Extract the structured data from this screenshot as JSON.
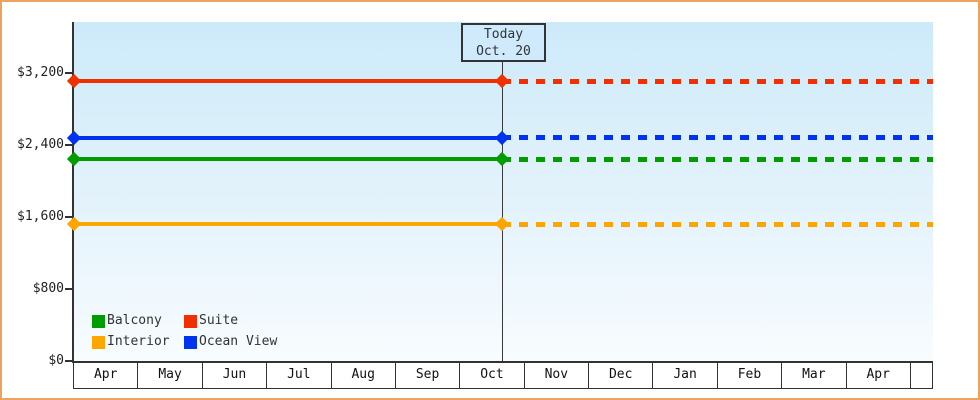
{
  "today_box": {
    "line1": "Today",
    "line2": "Oct. 20"
  },
  "y_axis": {
    "tick_labels": [
      "$3,200",
      "$2,400",
      "$1,600",
      "$800",
      "$0"
    ],
    "tick_values": [
      3200,
      2400,
      1600,
      800,
      0
    ]
  },
  "x_axis": {
    "month_labels": [
      "Apr",
      "May",
      "Jun",
      "Jul",
      "Aug",
      "Sep",
      "Oct",
      "Nov",
      "Dec",
      "Jan",
      "Feb",
      "Mar",
      "Apr"
    ]
  },
  "legend": {
    "items": [
      {
        "label": "Balcony",
        "color": "#009c00"
      },
      {
        "label": "Suite",
        "color": "#f03000"
      },
      {
        "label": "Interior",
        "color": "#ffa500"
      },
      {
        "label": "Ocean View",
        "color": "#0033f0"
      }
    ]
  },
  "colors": {
    "frame_border": "#eba35f",
    "axis": "#333333",
    "plot_bg_top": "#cdeafa",
    "plot_bg_bottom": "#f8fcff",
    "today_box_bg": "#cfeafc"
  },
  "chart_data": {
    "type": "line",
    "title": "",
    "x_categories": [
      "Apr",
      "May",
      "Jun",
      "Jul",
      "Aug",
      "Sep",
      "Oct",
      "Nov",
      "Dec",
      "Jan",
      "Feb",
      "Mar",
      "Apr"
    ],
    "y_ticks": [
      0,
      800,
      1600,
      2400,
      3200
    ],
    "ylim": [
      0,
      3770
    ],
    "grid": false,
    "legend_position": "bottom-left inside plot",
    "today_annotation": {
      "label": "Today",
      "date": "Oct. 20",
      "month_position": "Oct"
    },
    "values_constant_across_months": true,
    "series": [
      {
        "name": "Balcony",
        "color": "#009c00",
        "value_usd": 2240,
        "solid_until_today": true,
        "dashed_projection_after_today": true
      },
      {
        "name": "Suite",
        "color": "#f03000",
        "value_usd": 3110,
        "solid_until_today": true,
        "dashed_projection_after_today": true
      },
      {
        "name": "Interior",
        "color": "#ffa500",
        "value_usd": 1520,
        "solid_until_today": true,
        "dashed_projection_after_today": true
      },
      {
        "name": "Ocean View",
        "color": "#0033f0",
        "value_usd": 2480,
        "solid_until_today": true,
        "dashed_projection_after_today": true
      }
    ]
  }
}
